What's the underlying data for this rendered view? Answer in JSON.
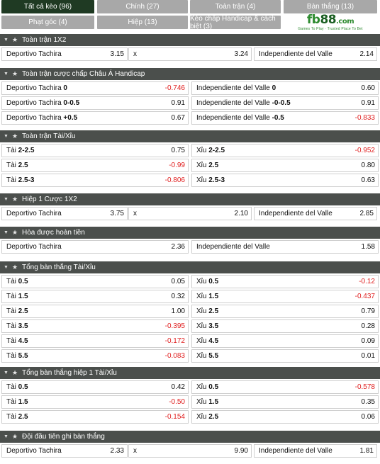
{
  "tabs": [
    {
      "label": "Tất cả kèo (96)",
      "active": true
    },
    {
      "label": "Chính (27)",
      "active": false
    },
    {
      "label": "Toàn trận (4)",
      "active": false
    },
    {
      "label": "Bàn thắng (13)",
      "active": false
    },
    {
      "label": "Phạt góc (4)",
      "active": false
    },
    {
      "label": "Hiệp (13)",
      "active": false
    },
    {
      "label": "Kèo chấp Handicap & cách biệt (3)",
      "active": false
    }
  ],
  "logo": {
    "fb": "fb",
    "num": "88",
    "dot": ".com",
    "tagline": "Games To Play · Trusted Place To Bet"
  },
  "markets": [
    {
      "title": "Toàn trận 1X2",
      "columns": 3,
      "rows": [
        [
          {
            "name": "Deportivo Tachira",
            "handicap": "",
            "odds": "3.15"
          },
          {
            "name": "x",
            "handicap": "",
            "odds": "3.24"
          },
          {
            "name": "Independiente del Valle",
            "handicap": "",
            "odds": "2.14"
          }
        ]
      ]
    },
    {
      "title": "Toàn trận cược chấp Châu Á Handicap",
      "columns": 2,
      "rows": [
        [
          {
            "name": "Deportivo Tachira",
            "handicap": "0",
            "odds": "-0.746"
          },
          {
            "name": "Independiente del Valle",
            "handicap": "0",
            "odds": "0.60"
          }
        ],
        [
          {
            "name": "Deportivo Tachira",
            "handicap": "0-0.5",
            "odds": "0.91"
          },
          {
            "name": "Independiente del Valle",
            "handicap": "-0-0.5",
            "odds": "0.91"
          }
        ],
        [
          {
            "name": "Deportivo Tachira",
            "handicap": "+0.5",
            "odds": "0.67"
          },
          {
            "name": "Independiente del Valle",
            "handicap": "-0.5",
            "odds": "-0.833"
          }
        ]
      ]
    },
    {
      "title": "Toàn trận Tài/Xỉu",
      "columns": 2,
      "rows": [
        [
          {
            "name": "Tài",
            "handicap": "2-2.5",
            "odds": "0.75"
          },
          {
            "name": "Xỉu",
            "handicap": "2-2.5",
            "odds": "-0.952"
          }
        ],
        [
          {
            "name": "Tài",
            "handicap": "2.5",
            "odds": "-0.99"
          },
          {
            "name": "Xỉu",
            "handicap": "2.5",
            "odds": "0.80"
          }
        ],
        [
          {
            "name": "Tài",
            "handicap": "2.5-3",
            "odds": "-0.806"
          },
          {
            "name": "Xỉu",
            "handicap": "2.5-3",
            "odds": "0.63"
          }
        ]
      ]
    },
    {
      "title": "Hiệp 1 Cược 1X2",
      "columns": 3,
      "rows": [
        [
          {
            "name": "Deportivo Tachira",
            "handicap": "",
            "odds": "3.75"
          },
          {
            "name": "x",
            "handicap": "",
            "odds": "2.10"
          },
          {
            "name": "Independiente del Valle",
            "handicap": "",
            "odds": "2.85"
          }
        ]
      ]
    },
    {
      "title": "Hòa được hoàn tiền",
      "columns": 2,
      "rows": [
        [
          {
            "name": "Deportivo Tachira",
            "handicap": "",
            "odds": "2.36"
          },
          {
            "name": "Independiente del Valle",
            "handicap": "",
            "odds": "1.58"
          }
        ]
      ]
    },
    {
      "title": "Tổng bàn thắng Tài/Xỉu",
      "columns": 2,
      "rows": [
        [
          {
            "name": "Tài",
            "handicap": "0.5",
            "odds": "0.05"
          },
          {
            "name": "Xỉu",
            "handicap": "0.5",
            "odds": "-0.12"
          }
        ],
        [
          {
            "name": "Tài",
            "handicap": "1.5",
            "odds": "0.32"
          },
          {
            "name": "Xỉu",
            "handicap": "1.5",
            "odds": "-0.437"
          }
        ],
        [
          {
            "name": "Tài",
            "handicap": "2.5",
            "odds": "1.00"
          },
          {
            "name": "Xỉu",
            "handicap": "2.5",
            "odds": "0.79"
          }
        ],
        [
          {
            "name": "Tài",
            "handicap": "3.5",
            "odds": "-0.395"
          },
          {
            "name": "Xỉu",
            "handicap": "3.5",
            "odds": "0.28"
          }
        ],
        [
          {
            "name": "Tài",
            "handicap": "4.5",
            "odds": "-0.172"
          },
          {
            "name": "Xỉu",
            "handicap": "4.5",
            "odds": "0.09"
          }
        ],
        [
          {
            "name": "Tài",
            "handicap": "5.5",
            "odds": "-0.083"
          },
          {
            "name": "Xỉu",
            "handicap": "5.5",
            "odds": "0.01"
          }
        ]
      ]
    },
    {
      "title": "Tổng bàn thắng hiệp 1 Tài/Xỉu",
      "columns": 2,
      "rows": [
        [
          {
            "name": "Tài",
            "handicap": "0.5",
            "odds": "0.42"
          },
          {
            "name": "Xỉu",
            "handicap": "0.5",
            "odds": "-0.578"
          }
        ],
        [
          {
            "name": "Tài",
            "handicap": "1.5",
            "odds": "-0.50"
          },
          {
            "name": "Xỉu",
            "handicap": "1.5",
            "odds": "0.35"
          }
        ],
        [
          {
            "name": "Tài",
            "handicap": "2.5",
            "odds": "-0.154"
          },
          {
            "name": "Xỉu",
            "handicap": "2.5",
            "odds": "0.06"
          }
        ]
      ]
    },
    {
      "title": "Đội đầu tiên ghi bàn thắng",
      "columns": 3,
      "rows": [
        [
          {
            "name": "Deportivo Tachira",
            "handicap": "",
            "odds": "2.33"
          },
          {
            "name": "x",
            "handicap": "",
            "odds": "9.90"
          },
          {
            "name": "Independiente del Valle",
            "handicap": "",
            "odds": "1.81"
          }
        ]
      ]
    }
  ],
  "colors": {
    "negative": "#e02020",
    "header_bg": "#4b4f4c",
    "tab_active": "#1f3a23",
    "tab_inactive": "#a8a8a8"
  }
}
